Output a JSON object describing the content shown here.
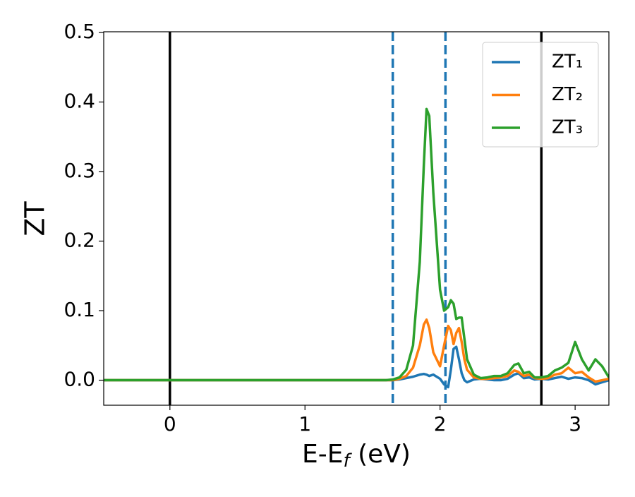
{
  "chart_data": {
    "type": "line",
    "ylabel": "ZT",
    "xlabel": [
      "E-E",
      "f",
      " (eV)"
    ],
    "x": [
      -0.49,
      1.5,
      1.6,
      1.65,
      1.7,
      1.75,
      1.8,
      1.85,
      1.88,
      1.9,
      1.92,
      1.95,
      2.0,
      2.03,
      2.06,
      2.08,
      2.1,
      2.12,
      2.14,
      2.16,
      2.18,
      2.2,
      2.25,
      2.3,
      2.35,
      2.4,
      2.45,
      2.5,
      2.55,
      2.58,
      2.62,
      2.66,
      2.7,
      2.75,
      2.8,
      2.85,
      2.9,
      2.95,
      3.0,
      3.05,
      3.1,
      3.15,
      3.2,
      3.25
    ],
    "series": [
      {
        "name": "ZT₁",
        "color": "#1f77b4",
        "values": [
          0,
          0,
          0,
          0,
          0.001,
          0.003,
          0.005,
          0.008,
          0.009,
          0.008,
          0.006,
          0.008,
          0.002,
          -0.006,
          -0.01,
          0.015,
          0.045,
          0.048,
          0.03,
          0.01,
          0.0,
          -0.003,
          0.001,
          0.002,
          0.001,
          0.0,
          0.0,
          0.002,
          0.008,
          0.01,
          0.003,
          0.004,
          0.001,
          0.002,
          0.001,
          0.003,
          0.005,
          0.002,
          0.004,
          0.003,
          0.0,
          -0.006,
          -0.003,
          0.0
        ]
      },
      {
        "name": "ZT₂",
        "color": "#ff7f0e",
        "values": [
          0,
          0,
          0,
          0,
          0.002,
          0.006,
          0.018,
          0.05,
          0.08,
          0.087,
          0.075,
          0.04,
          0.02,
          0.05,
          0.078,
          0.072,
          0.052,
          0.068,
          0.075,
          0.055,
          0.03,
          0.015,
          0.004,
          0.002,
          0.002,
          0.003,
          0.004,
          0.006,
          0.014,
          0.012,
          0.006,
          0.008,
          0.003,
          0.002,
          0.003,
          0.008,
          0.01,
          0.018,
          0.01,
          0.012,
          0.004,
          -0.002,
          0.0,
          0.002
        ]
      },
      {
        "name": "ZT₃",
        "color": "#2ca02c",
        "values": [
          0,
          0,
          0,
          0.001,
          0.004,
          0.015,
          0.05,
          0.17,
          0.31,
          0.39,
          0.38,
          0.27,
          0.13,
          0.1,
          0.105,
          0.115,
          0.11,
          0.088,
          0.09,
          0.09,
          0.06,
          0.03,
          0.008,
          0.003,
          0.004,
          0.006,
          0.006,
          0.01,
          0.022,
          0.024,
          0.01,
          0.012,
          0.004,
          0.004,
          0.006,
          0.014,
          0.018,
          0.025,
          0.055,
          0.03,
          0.014,
          0.03,
          0.02,
          0.004
        ]
      }
    ],
    "vlines": [
      {
        "x": 0,
        "color": "#000000",
        "style": "solid"
      },
      {
        "x": 2.75,
        "color": "#000000",
        "style": "solid"
      },
      {
        "x": 1.65,
        "color": "#1f77b4",
        "style": "dashed"
      },
      {
        "x": 2.04,
        "color": "#1f77b4",
        "style": "dashed"
      }
    ],
    "xlim": [
      -0.49,
      3.25
    ],
    "ylim": [
      -0.036,
      0.501
    ],
    "xticks": [
      0,
      1,
      2,
      3
    ],
    "yticks": [
      {
        "value": 0,
        "label": "0.0"
      },
      0.1,
      0.2,
      0.3,
      0.4,
      0.5
    ],
    "legend": "upper right"
  }
}
